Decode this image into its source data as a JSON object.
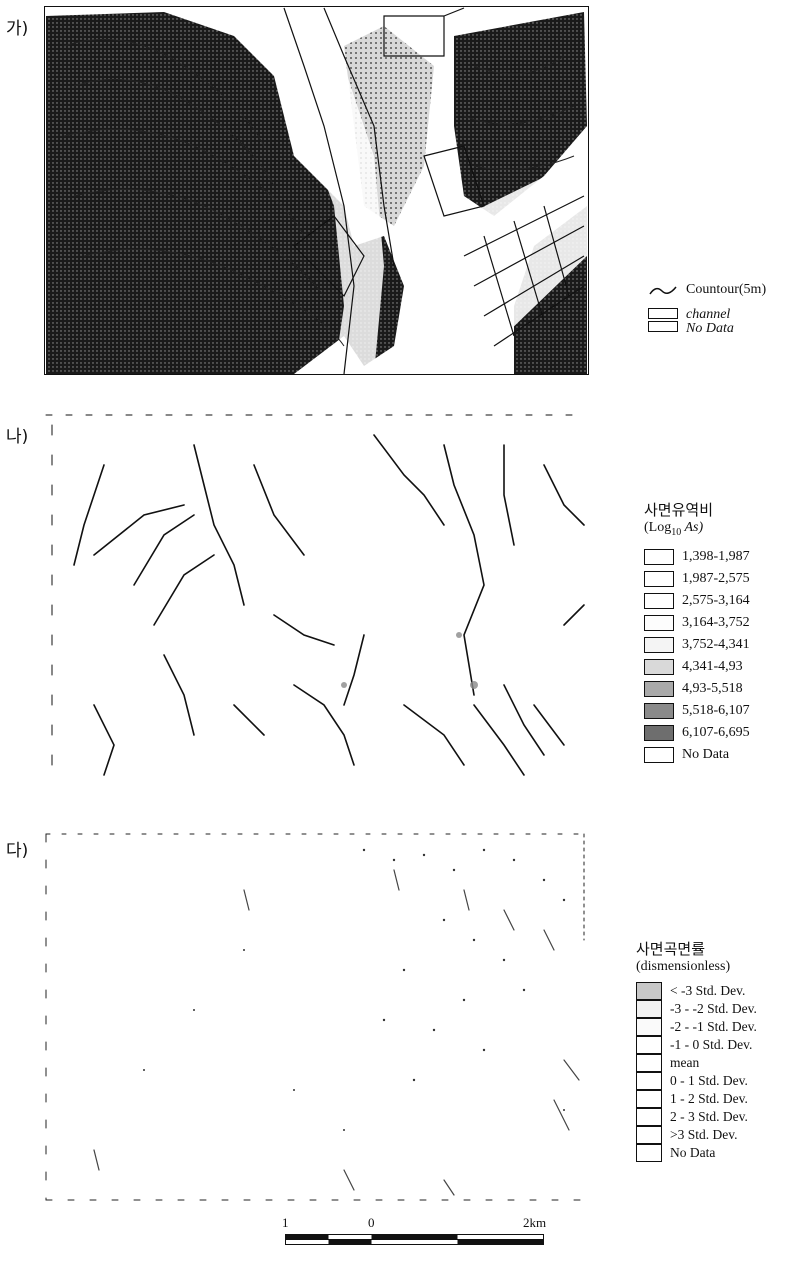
{
  "panels": [
    {
      "label": "가)"
    },
    {
      "label": "나)"
    },
    {
      "label": "다)"
    }
  ],
  "legend_a": {
    "contour_label": "Countour(5m)",
    "channel_label": "channel",
    "nodata_label": "No Data"
  },
  "legend_b": {
    "title": "사면유역비",
    "subtitle": "(Log10 As)",
    "subtitle_pre": "(Log",
    "subtitle_sub": "10",
    "subtitle_post": " As)",
    "items": [
      {
        "label": "1,398-1,987",
        "color": "#ffffff"
      },
      {
        "label": "1,987-2,575",
        "color": "#ffffff"
      },
      {
        "label": "2,575-3,164",
        "color": "#ffffff"
      },
      {
        "label": "3,164-3,752",
        "color": "#fdfdfd"
      },
      {
        "label": "3,752-4,341",
        "color": "#f4f4f4"
      },
      {
        "label": "4,341-4,93",
        "color": "#d9d9d9"
      },
      {
        "label": "4,93-5,518",
        "color": "#a9a9a9"
      },
      {
        "label": "5,518-6,107",
        "color": "#8a8a8a"
      },
      {
        "label": "6,107-6,695",
        "color": "#6e6e6e"
      },
      {
        "label": "No Data",
        "color": "#ffffff"
      }
    ]
  },
  "legend_c": {
    "title": "사면곡면률",
    "subtitle": "(dismensionless)",
    "items": [
      {
        "label": "< -3 Std. Dev.",
        "color": "#c8c8c8"
      },
      {
        "label": "-3 - -2 Std. Dev.",
        "color": "#f2f2f2"
      },
      {
        "label": "-2 - -1 Std. Dev.",
        "color": "#fafafa"
      },
      {
        "label": "-1 - 0 Std. Dev.",
        "color": "#ffffff"
      },
      {
        "label": "mean",
        "color": "#ffffff"
      },
      {
        "label": "0 - 1 Std. Dev.",
        "color": "#ffffff"
      },
      {
        "label": "1 - 2 Std. Dev.",
        "color": "#ffffff"
      },
      {
        "label": "2 - 3 Std. Dev.",
        "color": "#ffffff"
      },
      {
        "label": ">3 Std. Dev.",
        "color": "#ffffff"
      },
      {
        "label": "No Data",
        "color": "#ffffff"
      }
    ]
  },
  "scalebar": {
    "tick_left": "1",
    "tick_zero": "0",
    "tick_right": "2km"
  }
}
